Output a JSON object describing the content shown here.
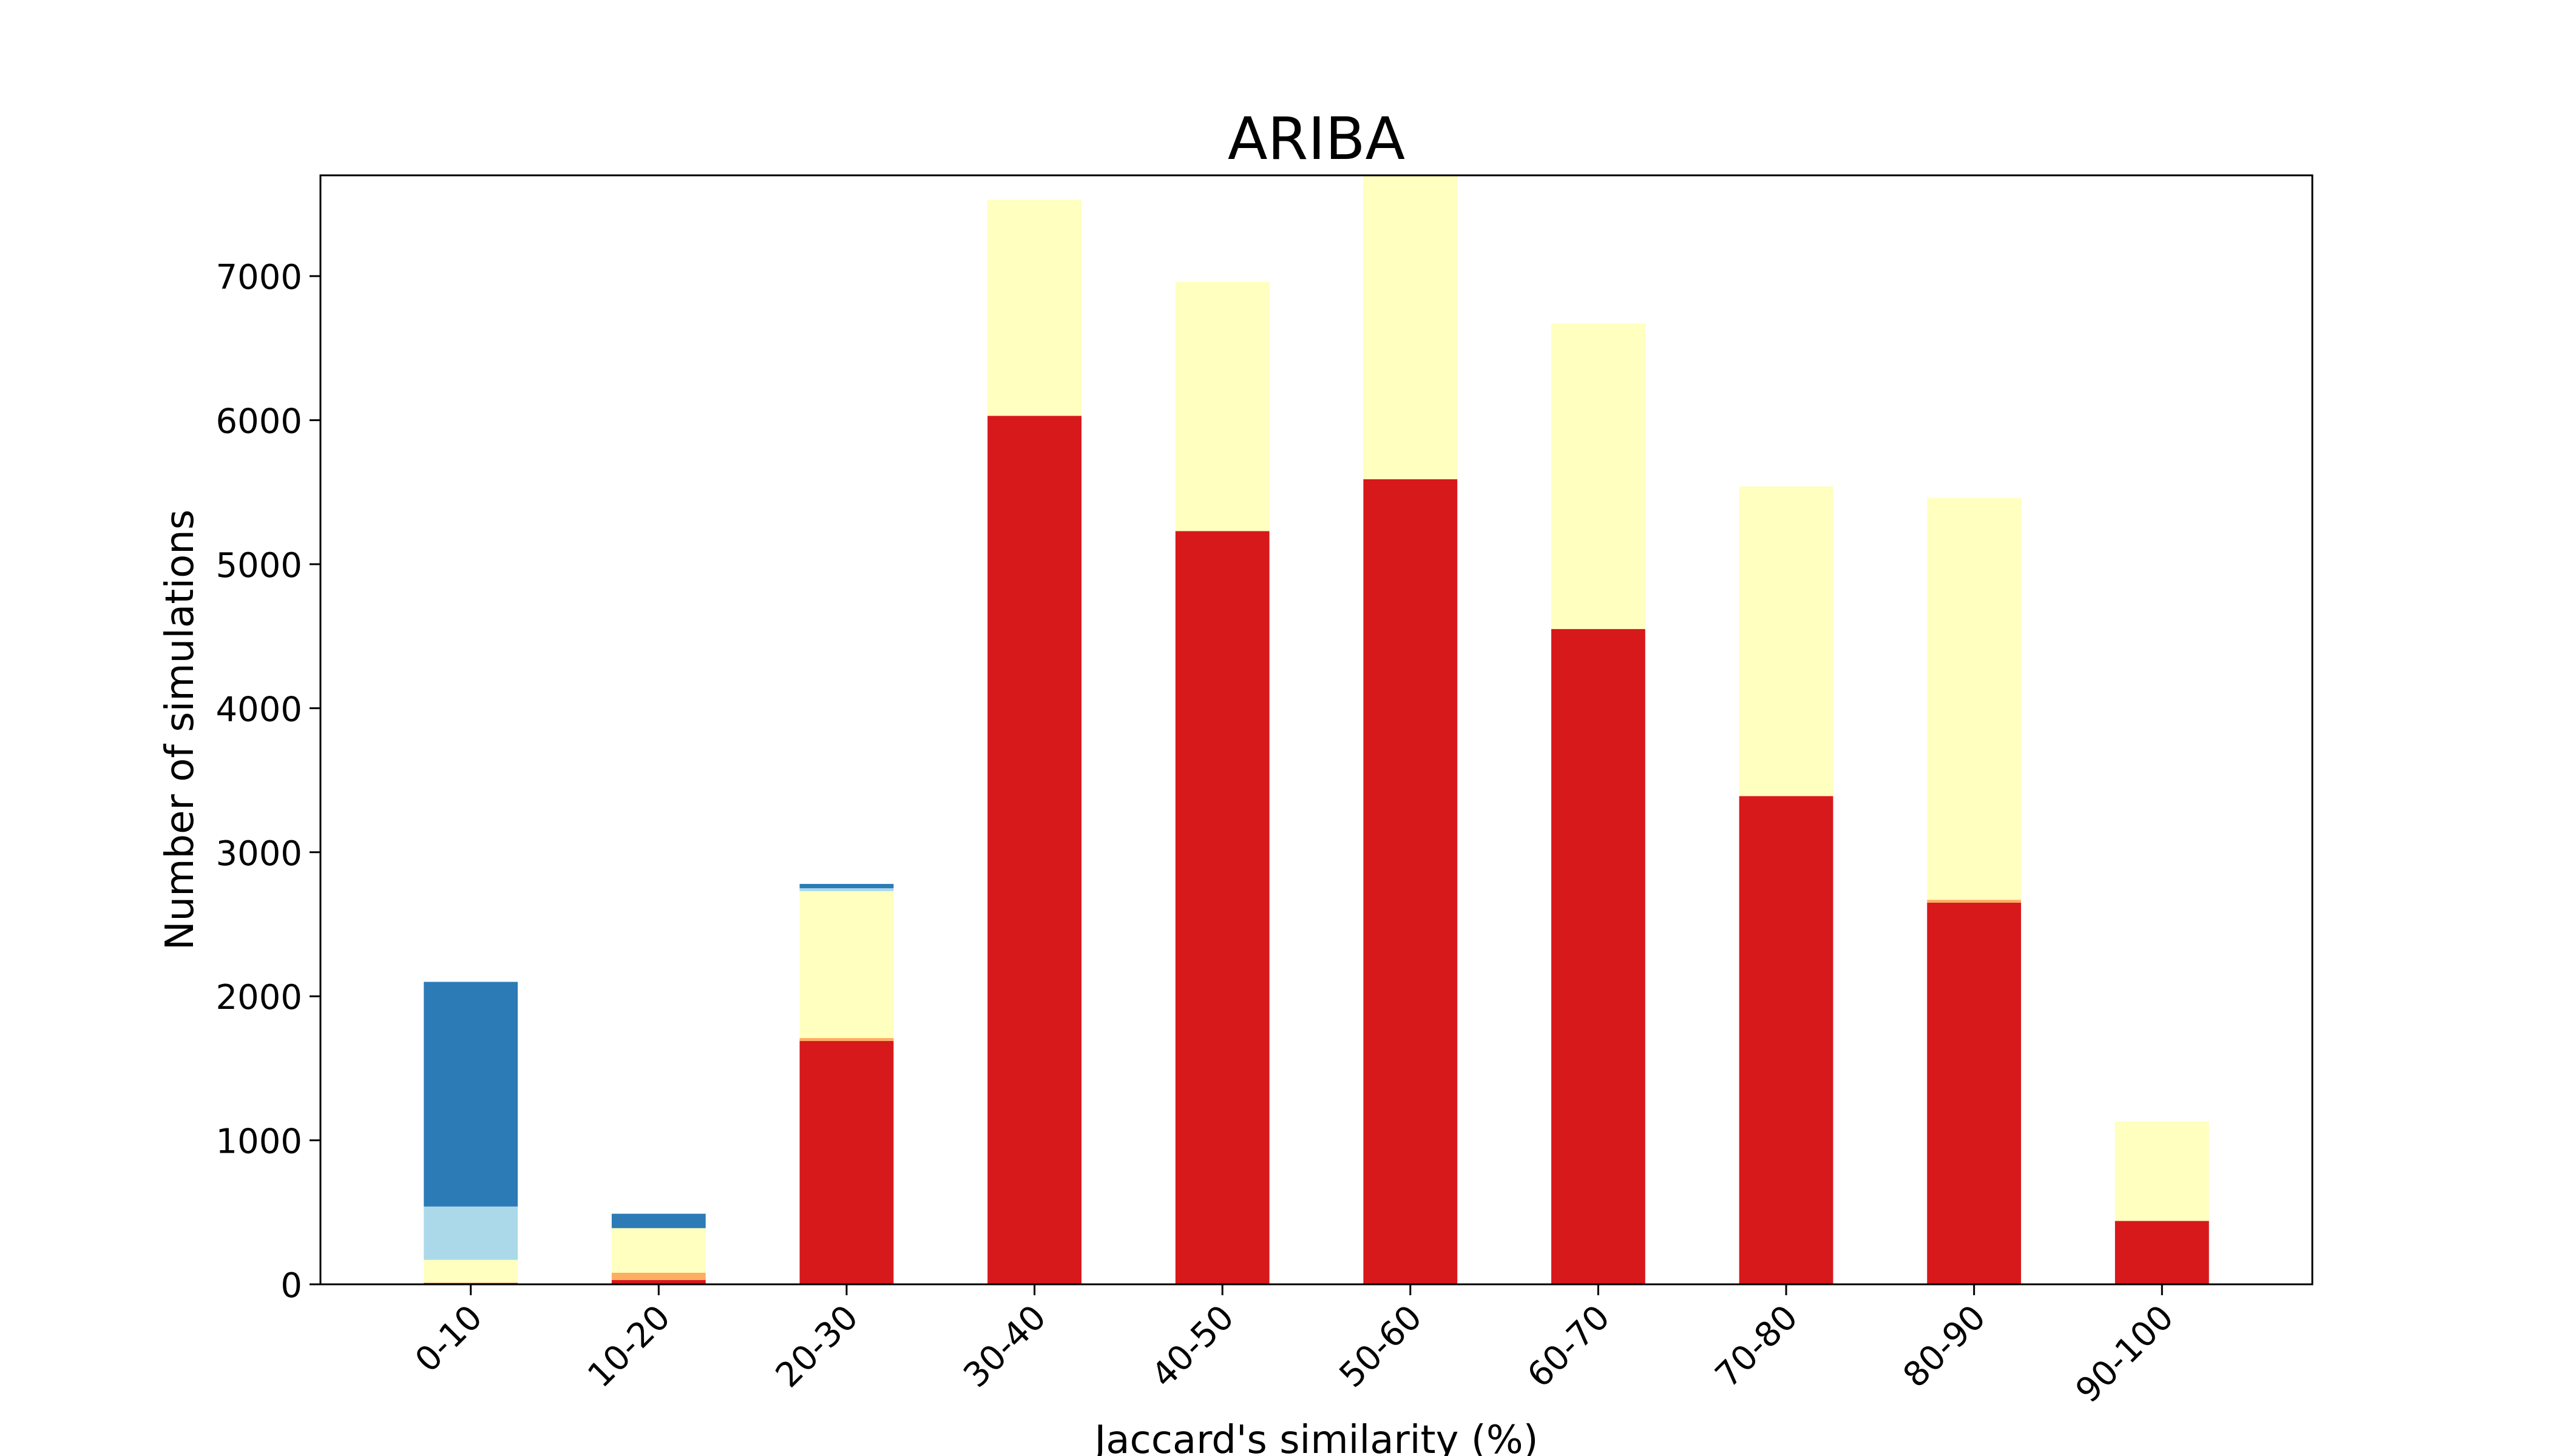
{
  "chart_data": {
    "type": "bar",
    "stacked": true,
    "title": "ARIBA",
    "xlabel": "Jaccard's similarity (%)",
    "ylabel": "Number of simulations",
    "categories": [
      "0-10",
      "10-20",
      "20-30",
      "30-40",
      "40-50",
      "50-60",
      "60-70",
      "70-80",
      "80-90",
      "90-100"
    ],
    "ylim": [
      0,
      7700
    ],
    "yticks": [
      0,
      1000,
      2000,
      3000,
      4000,
      5000,
      6000,
      7000
    ],
    "grid": false,
    "legend": false,
    "series": [
      {
        "color": "#d7191c",
        "values": [
          10,
          30,
          1690,
          6030,
          5230,
          5590,
          4550,
          3390,
          2650,
          440
        ]
      },
      {
        "color": "#fdae61",
        "values": [
          0,
          50,
          20,
          0,
          0,
          0,
          0,
          0,
          20,
          0
        ]
      },
      {
        "color": "#ffffbf",
        "values": [
          160,
          310,
          1020,
          1500,
          1730,
          2110,
          2120,
          2150,
          2790,
          690
        ]
      },
      {
        "color": "#abd9e9",
        "values": [
          370,
          0,
          20,
          0,
          0,
          0,
          0,
          0,
          0,
          0
        ]
      },
      {
        "color": "#2c7bb6",
        "values": [
          1560,
          100,
          30,
          0,
          0,
          0,
          0,
          0,
          0,
          0
        ]
      }
    ]
  }
}
